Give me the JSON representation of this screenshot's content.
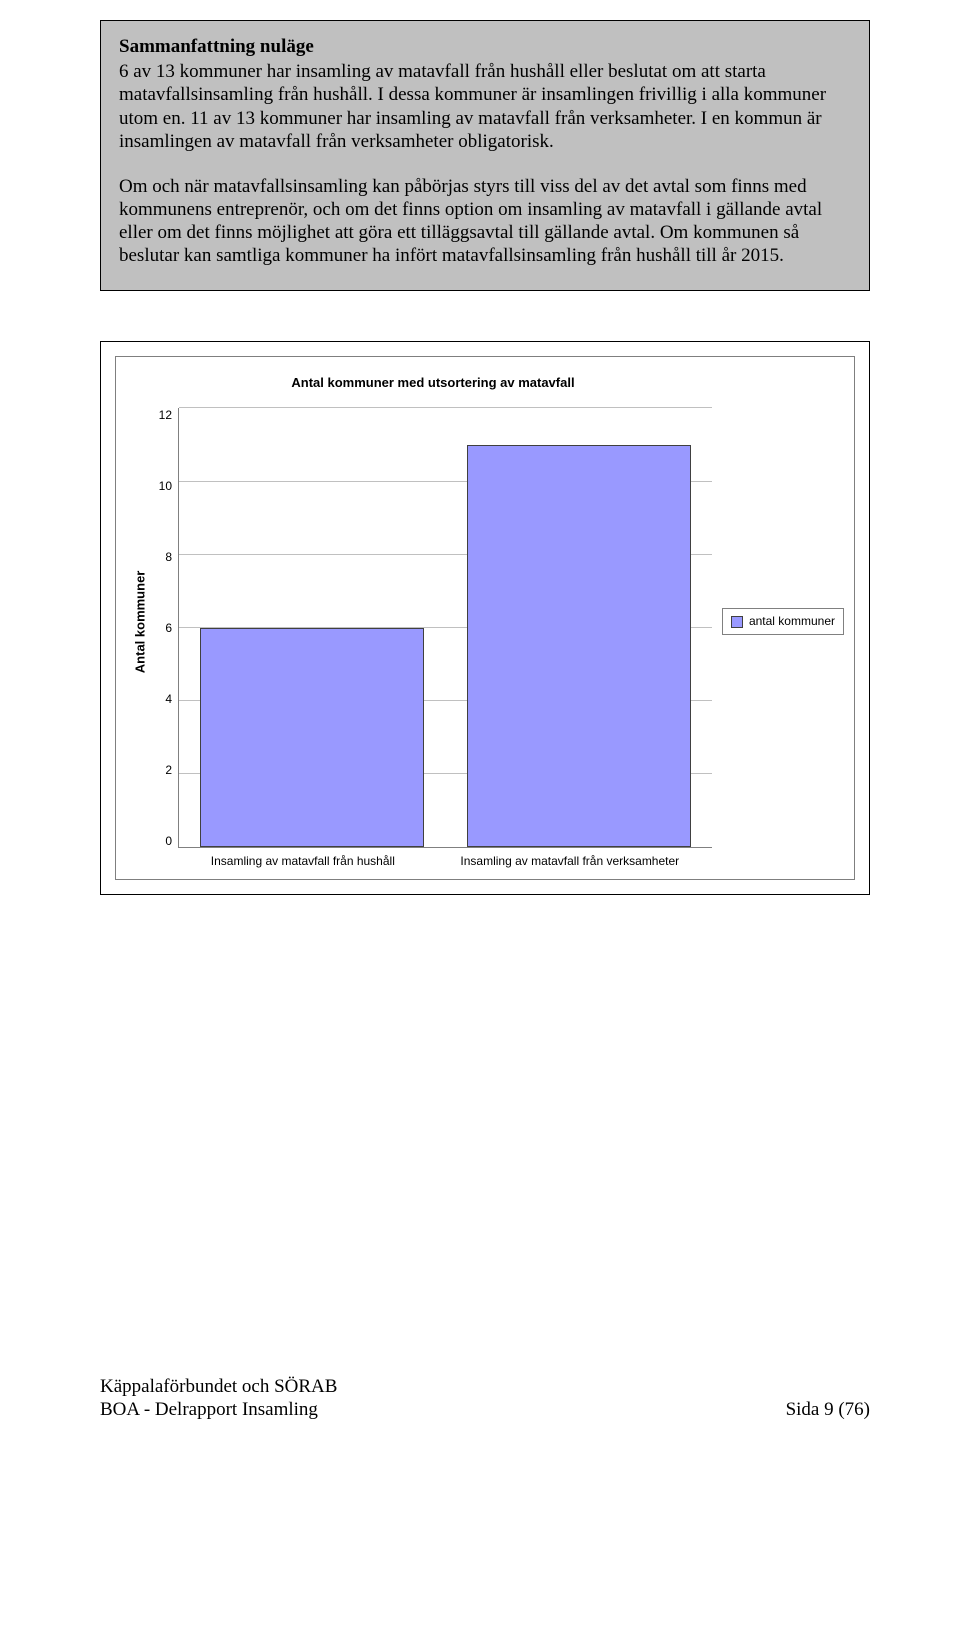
{
  "summary": {
    "title": "Sammanfattning nuläge",
    "p1": "6 av 13 kommuner har insamling av matavfall från hushåll eller beslutat om att starta matavfallsinsamling från hushåll. I dessa kommuner är insamlingen frivillig i alla kommuner utom en. 11 av 13 kommuner har insamling av matavfall från verksamheter. I en kommun är insamlingen av matavfall från verksamheter obligatorisk.",
    "p2": "Om och när matavfallsinsamling kan påbörjas styrs till viss del av det avtal som finns med kommunens entreprenör, och om det finns option om insamling av matavfall i gällande avtal eller om det finns möjlighet att göra ett tilläggsavtal till gällande avtal. Om kommunen så beslutar kan samtliga kommuner ha infört matavfallsinsamling från hushåll till år 2015."
  },
  "chart": {
    "title": "Antal kommuner med utsortering av matavfall",
    "ylabel": "Antal kommuner",
    "categories": [
      "Insamling av matavfall från hushåll",
      "Insamling av matavfall från verksamheter"
    ],
    "values": [
      6,
      11
    ],
    "ymin": 0,
    "ymax": 12,
    "ytick_step": 2,
    "bar_color": "#9999ff",
    "bar_border_color": "#404040",
    "grid_color": "#c0c0c0",
    "axis_color": "#808080",
    "background_color": "#ffffff",
    "bar_width_pct": 42,
    "legend_label": "antal kommuner",
    "title_fontsize": 13,
    "label_fontsize": 13,
    "tick_fontsize": 12
  },
  "footer": {
    "left1": "Käppalaförbundet och SÖRAB",
    "left2": "BOA - Delrapport Insamling",
    "right": "Sida 9 (76)"
  }
}
